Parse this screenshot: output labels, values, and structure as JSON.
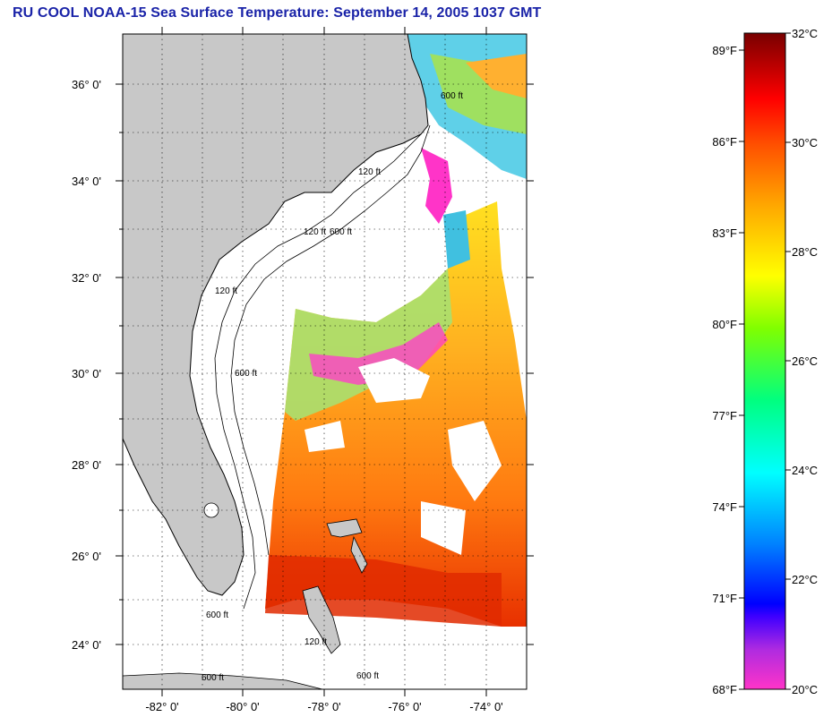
{
  "title": "RU COOL  NOAA-15  Sea Surface Temperature:  September 14, 2005 1037 GMT",
  "map": {
    "lat_labels": [
      "36° 0'",
      "34° 0'",
      "32° 0'",
      "30° 0'",
      "28° 0'",
      "26° 0'",
      "24° 0'"
    ],
    "lon_labels": [
      "-82° 0'",
      "-80° 0'",
      "-78° 0'",
      "-76° 0'",
      "-74° 0'"
    ],
    "contour_labels": [
      "600 ft",
      "120 ft",
      "600 ft",
      "120 ft",
      "120 ft",
      "600 ft",
      "600 ft",
      "600 ft",
      "120 ft",
      "600 ft"
    ],
    "colors": {
      "land": "#c8c8c8",
      "ocean_cloud": "#ffffff",
      "grid": "#000000"
    }
  },
  "colorbar": {
    "fahrenheit_labels": [
      "89°F",
      "86°F",
      "83°F",
      "80°F",
      "77°F",
      "74°F",
      "71°F",
      "68°F"
    ],
    "celsius_labels": [
      "32°C",
      "30°C",
      "28°C",
      "26°C",
      "24°C",
      "22°C",
      "20°C"
    ],
    "colors": [
      "#ff34c8",
      "#8a2be2",
      "#0000ff",
      "#0080ff",
      "#00ffff",
      "#00ff80",
      "#80ff00",
      "#ffff00",
      "#ffa500",
      "#ff6000",
      "#ff0000",
      "#c00000",
      "#7a0000"
    ]
  }
}
